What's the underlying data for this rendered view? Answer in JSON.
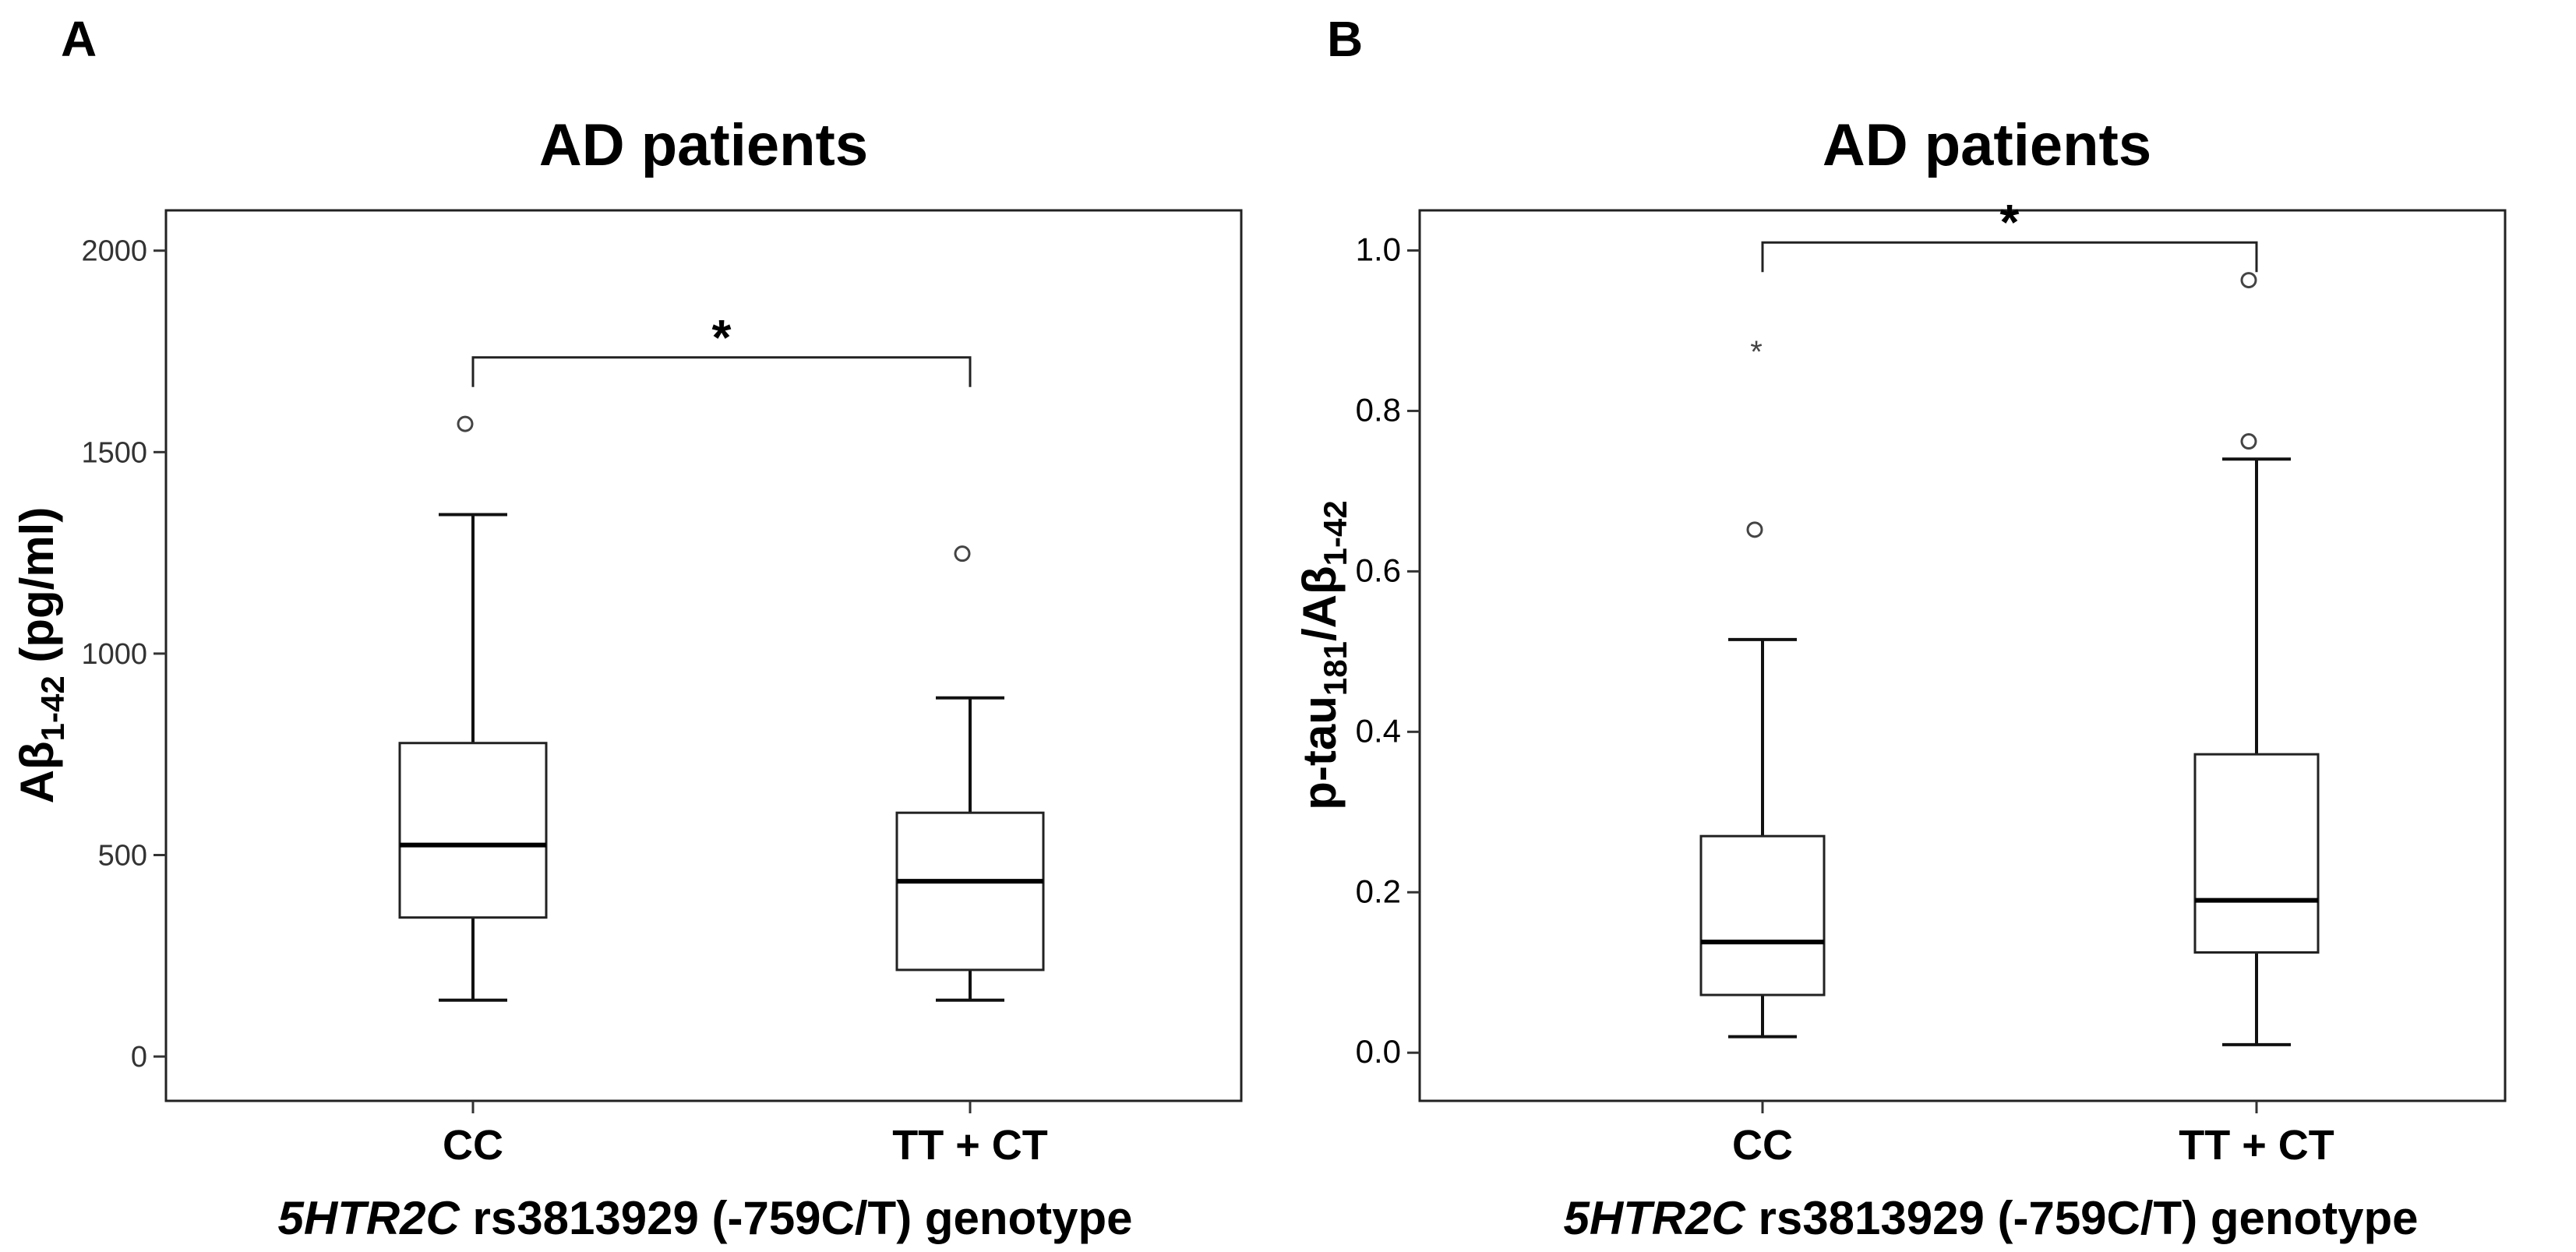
{
  "chart_data": [
    {
      "panel": "A",
      "type": "boxplot",
      "title": "AD patients",
      "ylabel_main": "Aβ",
      "ylabel_sub": "1-42",
      "ylabel_unit": " (pg/ml)",
      "xlabel_italic": "5HTR2C",
      "xlabel_rest": " rs3813929 (-759C/T) genotype",
      "ylim": [
        -110,
        2100
      ],
      "yticks": [
        "0",
        "500",
        "1000",
        "1500",
        "2000"
      ],
      "ytick_values": [
        0,
        500,
        1000,
        1500,
        2000
      ],
      "categories": [
        "CC",
        "TT + CT"
      ],
      "boxes": [
        {
          "category": "CC",
          "min": 140,
          "q1": 345,
          "median": 525,
          "q3": 778,
          "max": 1345,
          "outliers": [
            {
              "value": 1570,
              "marker": "circle"
            }
          ]
        },
        {
          "category": "TT + CT",
          "min": 140,
          "q1": 215,
          "median": 435,
          "q3": 605,
          "max": 890,
          "outliers": [
            {
              "value": 1248,
              "marker": "circle"
            }
          ]
        }
      ],
      "significance": {
        "label": "*",
        "y": 1735
      }
    },
    {
      "panel": "B",
      "type": "boxplot",
      "title": "AD patients",
      "ylabel_p1": "p-tau",
      "ylabel_sub1": "181",
      "ylabel_p2": "/Aβ",
      "ylabel_sub2": "1-42",
      "xlabel_italic": "5HTR2C",
      "xlabel_rest": " rs3813929 (-759C/T) genotype",
      "ylim": [
        -0.06,
        1.05
      ],
      "yticks": [
        "0.0",
        "0.2",
        "0.4",
        "0.6",
        "0.8",
        "1.0"
      ],
      "ytick_values": [
        0.0,
        0.2,
        0.4,
        0.6,
        0.8,
        1.0
      ],
      "categories": [
        "CC",
        "TT + CT"
      ],
      "boxes": [
        {
          "category": "CC",
          "min": 0.02,
          "q1": 0.072,
          "median": 0.138,
          "q3": 0.27,
          "max": 0.515,
          "outliers": [
            {
              "value": 0.652,
              "marker": "circle"
            },
            {
              "value": 0.878,
              "marker": "star"
            }
          ]
        },
        {
          "category": "TT + CT",
          "min": 0.01,
          "q1": 0.125,
          "median": 0.19,
          "q3": 0.372,
          "max": 0.74,
          "outliers": [
            {
              "value": 0.762,
              "marker": "circle"
            },
            {
              "value": 0.963,
              "marker": "circle"
            }
          ]
        }
      ],
      "significance": {
        "label": "*",
        "y": 1.01
      }
    }
  ]
}
